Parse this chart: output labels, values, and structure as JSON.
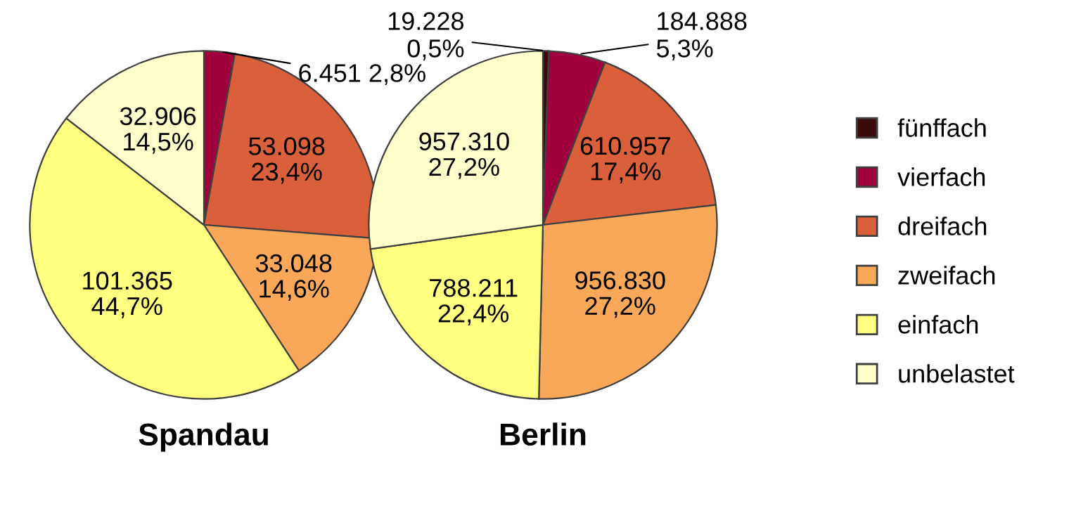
{
  "chart_data": [
    {
      "type": "pie",
      "title": "Spandau",
      "categories": [
        null,
        null,
        null,
        null,
        null
      ],
      "values": [
        6451,
        53098,
        33048,
        101365,
        32906
      ],
      "colors": [
        "#a0003c",
        "#d9603b",
        "#f9a85a",
        "#ffff80",
        "#ffffcc"
      ],
      "value_labels": [
        "6.451 2,8%",
        "53.098\n23,4%",
        "33.048\n14,6%",
        "101.365\n44,7%",
        "32.906\n14,5%"
      ]
    },
    {
      "type": "pie",
      "title": "Berlin",
      "categories": [
        "fünffach",
        "vierfach",
        "dreifach",
        "zweifach",
        "einfach",
        "unbelastet"
      ],
      "values": [
        19228,
        184888,
        610957,
        956830,
        788211,
        957310
      ],
      "colors": [
        "#3b0a0a",
        "#a0003c",
        "#d9603b",
        "#f9a85a",
        "#ffff80",
        "#ffffcc"
      ],
      "value_labels": [
        "19.228\n0,5%",
        "184.888\n5,3%",
        "610.957\n17,4%",
        "956.830\n27,2%",
        "788.211\n22,4%",
        "957.310\n27,2%"
      ],
      "legend": "right"
    }
  ]
}
